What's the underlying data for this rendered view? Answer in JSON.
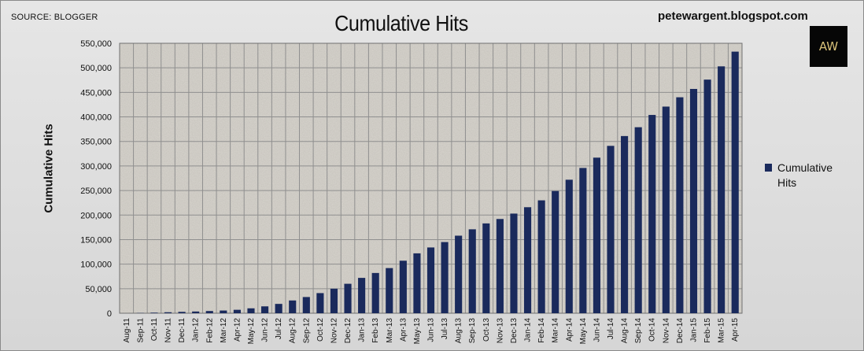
{
  "header": {
    "source": "SOURCE: BLOGGER",
    "site": "petewargent.blogspot.com",
    "logo_text": "AW"
  },
  "colors": {
    "bar": "#1a2a5c",
    "grid": "#8f8f8f",
    "plot_bg": "#d9d6cf"
  },
  "chart_data": {
    "type": "bar",
    "title": "Cumulative Hits",
    "xlabel": "",
    "ylabel": "Cumulative Hits",
    "ylim": [
      0,
      550000
    ],
    "yticks": [
      0,
      50000,
      100000,
      150000,
      200000,
      250000,
      300000,
      350000,
      400000,
      450000,
      500000,
      550000
    ],
    "ytick_labels": [
      "0",
      "50,000",
      "100,000",
      "150,000",
      "200,000",
      "250,000",
      "300,000",
      "350,000",
      "400,000",
      "450,000",
      "500,000",
      "550,000"
    ],
    "grid": true,
    "legend_position": "right",
    "categories": [
      "Aug-11",
      "Sep-11",
      "Oct-11",
      "Nov-11",
      "Dec-11",
      "Jan-12",
      "Feb-12",
      "Mar-12",
      "Apr-12",
      "May-12",
      "Jun-12",
      "Jul-12",
      "Aug-12",
      "Sep-12",
      "Oct-12",
      "Nov-12",
      "Dec-12",
      "Jan-13",
      "Feb-13",
      "Mar-13",
      "Apr-13",
      "May-13",
      "Jun-13",
      "Jul-13",
      "Aug-13",
      "Sep-13",
      "Oct-13",
      "Nov-13",
      "Dec-13",
      "Jan-14",
      "Feb-14",
      "Mar-14",
      "Apr-14",
      "May-14",
      "Jun-14",
      "Jul-14",
      "Aug-14",
      "Sep-14",
      "Oct-14",
      "Nov-14",
      "Dec-14",
      "Jan-15",
      "Feb-15",
      "Mar-15",
      "Apr-15"
    ],
    "series": [
      {
        "name": "Cumulative Hits",
        "values": [
          0,
          500,
          1200,
          2000,
          2800,
          3500,
          4500,
          5500,
          7000,
          10000,
          14000,
          19000,
          26000,
          33000,
          41000,
          50000,
          60000,
          72000,
          82000,
          92000,
          107000,
          122000,
          134000,
          145000,
          158000,
          171000,
          183000,
          192000,
          203000,
          216000,
          230000,
          249000,
          272000,
          296000,
          317000,
          341000,
          361000,
          379000,
          404000,
          421000,
          440000,
          457000,
          476000,
          503000,
          533000
        ]
      }
    ]
  }
}
